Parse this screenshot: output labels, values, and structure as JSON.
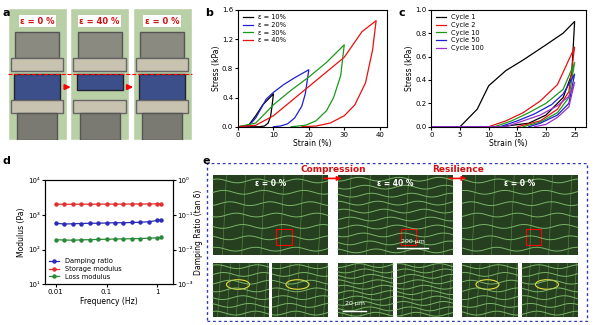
{
  "panel_a": {
    "panel": "a",
    "frames": [
      "ε = 0 %",
      "ε = 40 %",
      "ε = 0 %"
    ]
  },
  "chart_data": [
    {
      "panel": "b",
      "type": "line",
      "x_label": "Strain (%)",
      "y_label": "Stress (kPa)",
      "xlim": [
        0,
        42
      ],
      "xticks": [
        0,
        10,
        20,
        30,
        40
      ],
      "ylim": [
        0,
        1.6
      ],
      "yticks": [
        {
          "value": 0,
          "label": "0.0"
        },
        0.4,
        0.8,
        1.2,
        1.6
      ],
      "legend": "upper left",
      "series": [
        {
          "name": "ε = 10%",
          "color": "#000000",
          "x": [
            0,
            3,
            5,
            7,
            9,
            10,
            9.6,
            9.2,
            8.5,
            7.5,
            6,
            0
          ],
          "values": [
            0,
            0.02,
            0.15,
            0.3,
            0.4,
            0.45,
            0.28,
            0.14,
            0.05,
            0.01,
            0,
            0
          ]
        },
        {
          "name": "ε = 20%",
          "color": "#1f1fd0",
          "x": [
            0,
            3,
            5,
            8,
            10,
            13,
            16,
            20,
            19,
            18,
            16,
            14,
            12,
            10
          ],
          "values": [
            0,
            0.01,
            0.12,
            0.38,
            0.47,
            0.58,
            0.67,
            0.78,
            0.45,
            0.28,
            0.12,
            0.04,
            0.01,
            0
          ]
        },
        {
          "name": "ε = 30%",
          "color": "#1a9a1a",
          "x": [
            0,
            5,
            10,
            15,
            20,
            25,
            30,
            29,
            27,
            25,
            22,
            19,
            15
          ],
          "values": [
            0,
            0.05,
            0.3,
            0.5,
            0.68,
            0.88,
            1.12,
            0.7,
            0.4,
            0.22,
            0.08,
            0.02,
            0
          ]
        },
        {
          "name": "ε = 40%",
          "color": "#e81010",
          "x": [
            0,
            5,
            10,
            15,
            20,
            25,
            30,
            35,
            39,
            38,
            36,
            33,
            30,
            26,
            22,
            18
          ],
          "values": [
            0,
            0.02,
            0.15,
            0.35,
            0.55,
            0.75,
            0.95,
            1.3,
            1.45,
            1.05,
            0.6,
            0.3,
            0.15,
            0.05,
            0.01,
            0
          ]
        }
      ]
    },
    {
      "panel": "c",
      "type": "line",
      "x_label": "Strain (%)",
      "y_label": "Stress (kPa)",
      "xlim": [
        0,
        27
      ],
      "xticks": [
        0,
        5,
        10,
        15,
        20,
        25
      ],
      "ylim": [
        0,
        1.0
      ],
      "yticks": [
        {
          "value": 0,
          "label": "0.0"
        },
        0.2,
        0.4,
        0.6,
        0.8,
        {
          "value": 1,
          "label": "1.0"
        }
      ],
      "legend": "upper left",
      "series": [
        {
          "name": "Cycle 1",
          "color": "#000000",
          "x": [
            0,
            5,
            8,
            10,
            13,
            16,
            20,
            23,
            25,
            24.5,
            23,
            20,
            17,
            12
          ],
          "values": [
            0,
            0,
            0.15,
            0.35,
            0.48,
            0.57,
            0.7,
            0.8,
            0.9,
            0.45,
            0.25,
            0.1,
            0.03,
            0
          ]
        },
        {
          "name": "Cycle 2",
          "color": "#e81010",
          "x": [
            0,
            10,
            13,
            16,
            19,
            22,
            25,
            24,
            22,
            19,
            15
          ],
          "values": [
            0,
            0,
            0.05,
            0.12,
            0.22,
            0.36,
            0.68,
            0.3,
            0.15,
            0.05,
            0
          ]
        },
        {
          "name": "Cycle 10",
          "color": "#1a9a1a",
          "x": [
            0,
            11,
            14,
            17,
            20,
            23,
            25,
            24,
            22,
            19,
            16
          ],
          "values": [
            0,
            0,
            0.05,
            0.12,
            0.2,
            0.32,
            0.55,
            0.25,
            0.12,
            0.04,
            0
          ]
        },
        {
          "name": "Cycle 50",
          "color": "#1f1fd0",
          "x": [
            0,
            12,
            15,
            18,
            21,
            23,
            25,
            24,
            22,
            19,
            17
          ],
          "values": [
            0,
            0,
            0.05,
            0.11,
            0.19,
            0.28,
            0.45,
            0.2,
            0.1,
            0.03,
            0
          ]
        },
        {
          "name": "Cycle 100",
          "color": "#9b30c8",
          "x": [
            0,
            13,
            16,
            19,
            22,
            24,
            25,
            24,
            22,
            20,
            18
          ],
          "values": [
            0,
            0,
            0.05,
            0.1,
            0.18,
            0.26,
            0.38,
            0.17,
            0.08,
            0.02,
            0
          ]
        }
      ]
    },
    {
      "panel": "d",
      "type": "line",
      "log": true,
      "x_label": "Frequency (Hz)",
      "y_label": "Modulus (Pa)",
      "y2_label": "Damping Ratio (tan δ)",
      "xlim": [
        0.006,
        2
      ],
      "xticks": [
        0.01,
        0.1,
        1
      ],
      "ylim": [
        10,
        10000
      ],
      "yticks": [
        {
          "value": 10,
          "label": "10¹"
        },
        {
          "value": 100,
          "label": "10²"
        },
        {
          "value": 1000,
          "label": "10³"
        },
        {
          "value": 10000,
          "label": "10⁴"
        }
      ],
      "y2lim": [
        0.001,
        1
      ],
      "y2ticks": [
        {
          "value": 0.001,
          "label": "10⁻³"
        },
        {
          "value": 0.01,
          "label": "10⁻²"
        },
        {
          "value": 0.1,
          "label": "10⁻¹"
        },
        {
          "value": 1,
          "label": "10⁰"
        }
      ],
      "legend": "lower left",
      "x": [
        0.01,
        0.0147,
        0.0215,
        0.0316,
        0.0464,
        0.0681,
        0.1,
        0.147,
        0.215,
        0.316,
        0.464,
        0.681,
        1.0,
        1.2
      ],
      "series": [
        {
          "name": "Damping ratio",
          "color": "#2b2bb8",
          "marker": "circle",
          "line_style": "solid",
          "axis": "y2",
          "values": [
            0.058,
            0.055,
            0.056,
            0.057,
            0.058,
            0.058,
            0.059,
            0.06,
            0.06,
            0.061,
            0.062,
            0.064,
            0.07,
            0.072
          ]
        },
        {
          "name": "Storage modulus",
          "color": "#e03030",
          "marker": "circle",
          "line_style": "solid",
          "values": [
            2050,
            2040,
            2050,
            2060,
            2050,
            2060,
            2070,
            2060,
            2070,
            2080,
            2080,
            2090,
            2100,
            2110
          ]
        },
        {
          "name": "Loss modulus",
          "color": "#2a8a3a",
          "marker": "circle",
          "line_style": "solid",
          "values": [
            195,
            190,
            188,
            192,
            195,
            198,
            200,
            203,
            205,
            208,
            210,
            215,
            220,
            225
          ]
        }
      ]
    }
  ],
  "panel_e": {
    "panel": "e",
    "arrows": [
      "Compression",
      "Resilience"
    ],
    "frames": [
      "ε = 0 %",
      "ε = 40 %",
      "ε = 0 %"
    ],
    "scale_bars": [
      "200 μm",
      "20 μm"
    ]
  }
}
